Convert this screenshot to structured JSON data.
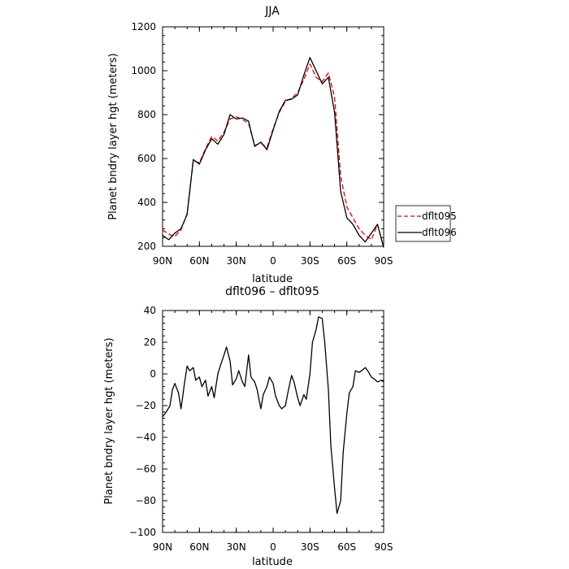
{
  "chart_data": [
    {
      "type": "line",
      "title": "JJA",
      "xlabel": "latitude",
      "ylabel": "Planet bndry layer hgt (meters)",
      "xlim": [
        90,
        -90
      ],
      "ylim": [
        200,
        1200
      ],
      "x_ticks": [
        {
          "value": 90,
          "label": "90N"
        },
        {
          "value": 60,
          "label": "60N"
        },
        {
          "value": 30,
          "label": "30N"
        },
        {
          "value": 0,
          "label": "0"
        },
        {
          "value": -30,
          "label": "30S"
        },
        {
          "value": -60,
          "label": "60S"
        },
        {
          "value": -90,
          "label": "90S"
        }
      ],
      "y_ticks": [
        200,
        400,
        600,
        800,
        1000,
        1200
      ],
      "grid": false,
      "legend": {
        "placement": "right",
        "entries": [
          "dflt095",
          "dflt096"
        ]
      },
      "x": [
        90,
        85,
        80,
        75,
        70,
        65,
        60,
        55,
        50,
        45,
        40,
        35,
        30,
        25,
        20,
        15,
        10,
        5,
        0,
        -5,
        -10,
        -15,
        -20,
        -25,
        -30,
        -35,
        -40,
        -45,
        -50,
        -55,
        -60,
        -65,
        -70,
        -75,
        -80,
        -85,
        -90
      ],
      "series": [
        {
          "name": "dflt095",
          "color": "#dd0000",
          "dash": "dashed",
          "values": [
            275,
            255,
            245,
            275,
            350,
            590,
            580,
            645,
            700,
            680,
            720,
            780,
            790,
            778,
            760,
            660,
            670,
            650,
            735,
            810,
            860,
            875,
            900,
            960,
            1030,
            970,
            950,
            990,
            880,
            520,
            380,
            330,
            280,
            250,
            230,
            300,
            195
          ]
        },
        {
          "name": "dflt096",
          "color": "#000000",
          "dash": "solid",
          "values": [
            250,
            230,
            260,
            280,
            345,
            595,
            575,
            640,
            690,
            665,
            710,
            800,
            780,
            785,
            770,
            655,
            675,
            640,
            730,
            815,
            865,
            870,
            890,
            980,
            1060,
            1000,
            940,
            970,
            810,
            450,
            330,
            300,
            250,
            220,
            260,
            300,
            195
          ]
        }
      ]
    },
    {
      "type": "line",
      "title": "dflt096 – dflt095",
      "xlabel": "latitude",
      "ylabel": "Planet bndry layer hgt (meters)",
      "xlim": [
        90,
        -90
      ],
      "ylim": [
        -100,
        40
      ],
      "x_ticks": [
        {
          "value": 90,
          "label": "90N"
        },
        {
          "value": 60,
          "label": "60N"
        },
        {
          "value": 30,
          "label": "30N"
        },
        {
          "value": 0,
          "label": "0"
        },
        {
          "value": -30,
          "label": "30S"
        },
        {
          "value": -60,
          "label": "60S"
        },
        {
          "value": -90,
          "label": "90S"
        }
      ],
      "y_ticks": [
        -100,
        -80,
        -60,
        -40,
        -20,
        0,
        20,
        40
      ],
      "grid": false,
      "x": [
        90,
        87,
        84,
        82,
        80,
        77,
        75,
        72,
        70,
        68,
        65,
        63,
        60,
        58,
        55,
        53,
        50,
        48,
        45,
        43,
        40,
        38,
        35,
        33,
        30,
        28,
        25,
        23,
        20,
        18,
        15,
        13,
        10,
        8,
        5,
        3,
        0,
        -2,
        -5,
        -7,
        -10,
        -12,
        -15,
        -17,
        -20,
        -22,
        -25,
        -27,
        -30,
        -32,
        -35,
        -37,
        -40,
        -42,
        -45,
        -47,
        -50,
        -52,
        -55,
        -57,
        -60,
        -62,
        -65,
        -67,
        -70,
        -72,
        -75,
        -77,
        -80,
        -82,
        -85,
        -88,
        -90
      ],
      "series": [
        {
          "name": "dflt096",
          "color": "#000000",
          "dash": "solid",
          "values": [
            -27,
            -24,
            -20,
            -10,
            -6,
            -12,
            -22,
            -5,
            5,
            2,
            4,
            -4,
            -2,
            -8,
            -4,
            -14,
            -8,
            -15,
            0,
            5,
            12,
            17,
            8,
            -7,
            -3,
            2,
            -5,
            -8,
            12,
            -2,
            -5,
            -10,
            -22,
            -13,
            -8,
            -2,
            -6,
            -14,
            -20,
            -22,
            -20,
            -12,
            -1,
            -5,
            -15,
            -20,
            -13,
            -16,
            0,
            20,
            28,
            36,
            35,
            20,
            -10,
            -45,
            -72,
            -88,
            -80,
            -50,
            -25,
            -12,
            -8,
            2,
            1,
            2,
            4,
            2,
            -2,
            -3,
            -5,
            -4,
            -5
          ]
        }
      ]
    }
  ]
}
